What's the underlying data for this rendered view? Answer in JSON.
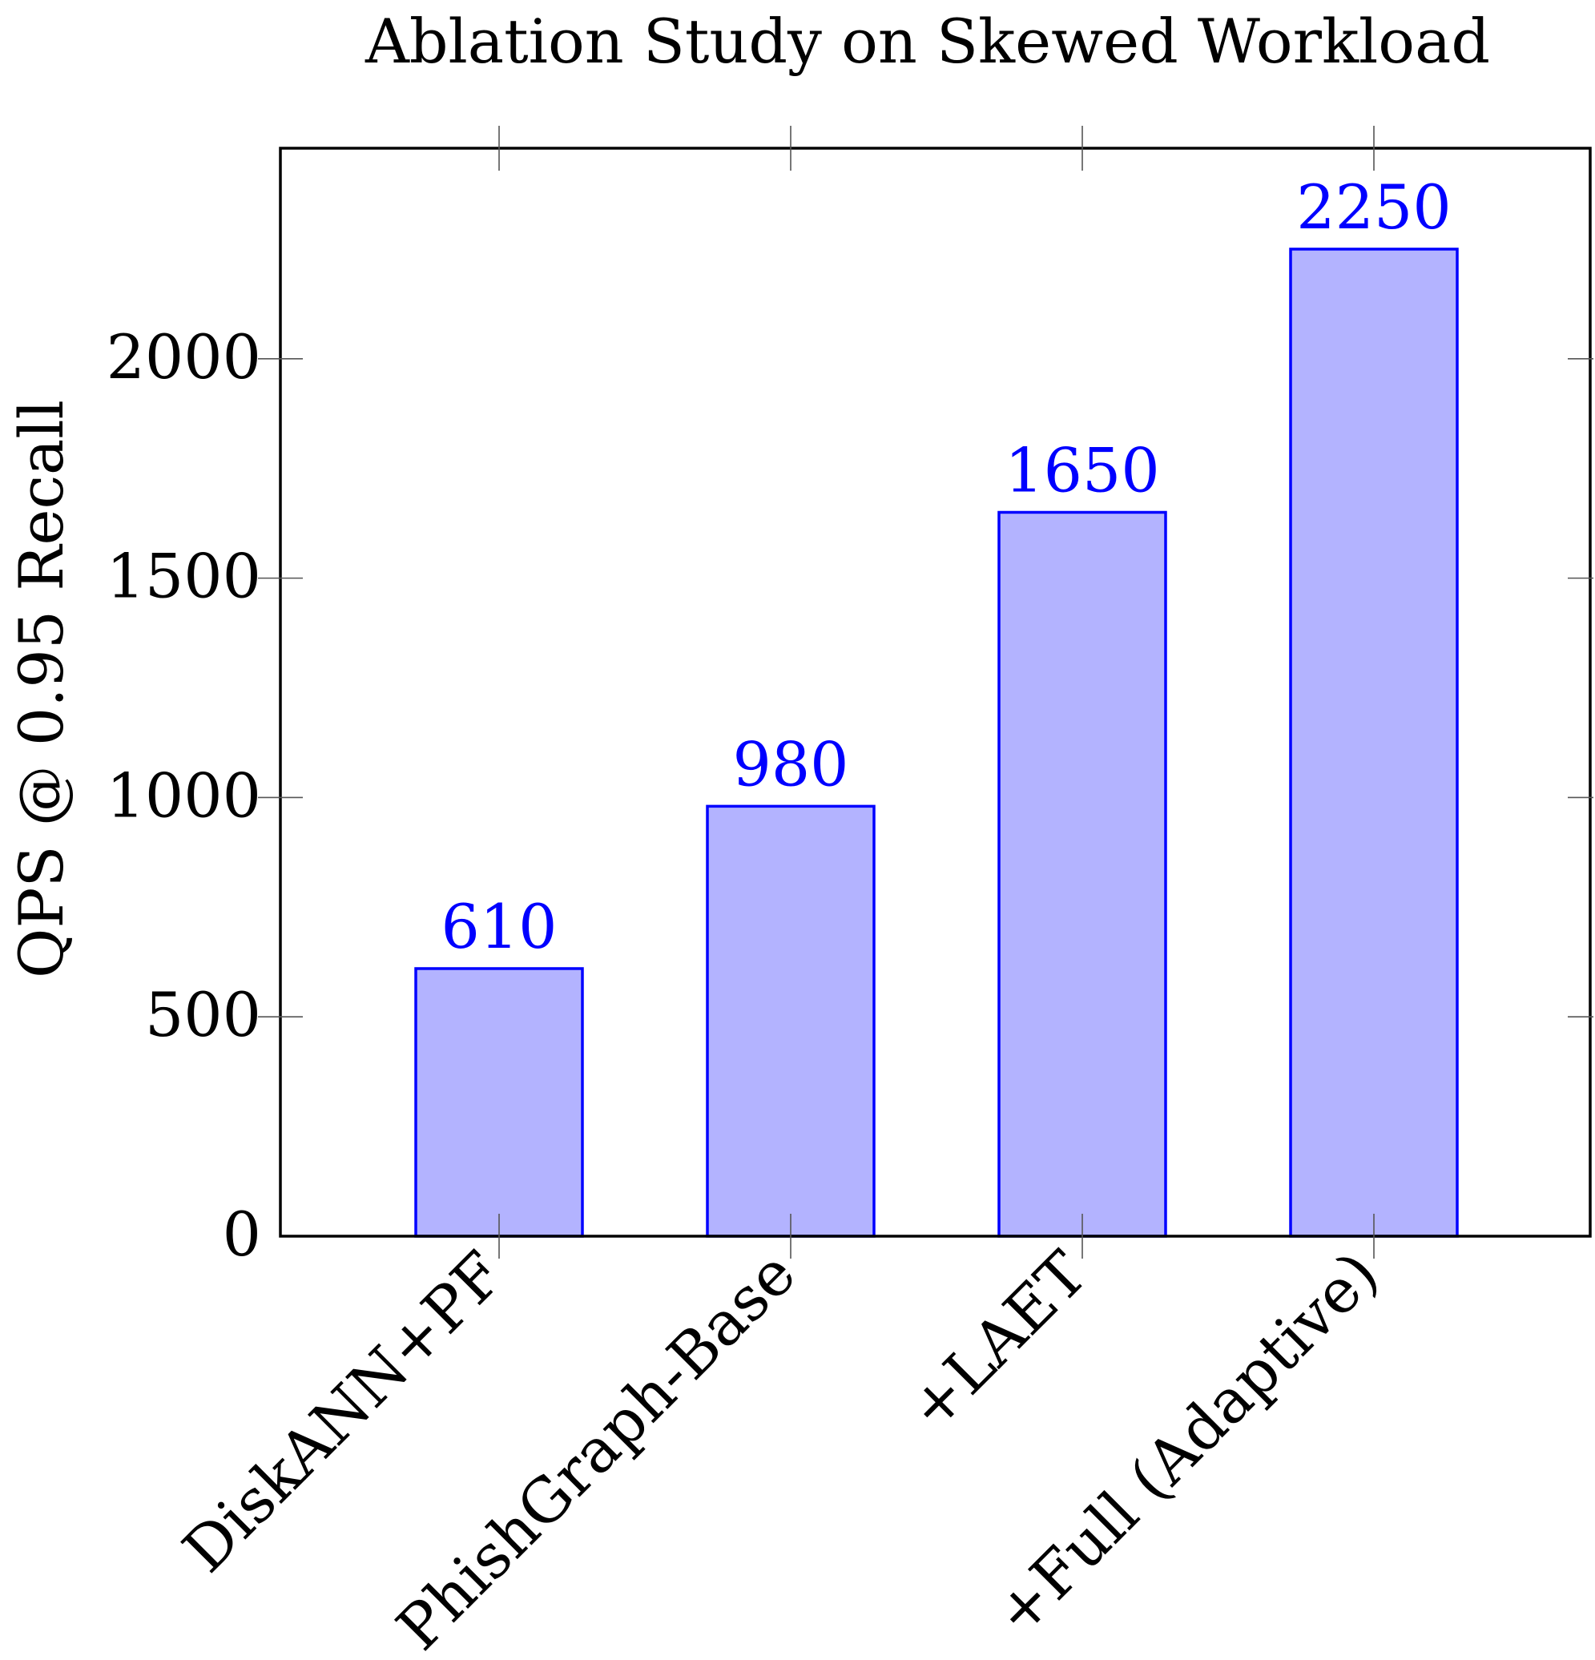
{
  "chart_data": {
    "type": "bar",
    "title": "Ablation Study on Skewed Workload",
    "xlabel": "",
    "ylabel": "QPS @ 0.95 Recall",
    "categories": [
      "DiskANN+PF",
      "PhishGraph-Base",
      "+LAET",
      "+Full (Adaptive)"
    ],
    "values": [
      610,
      980,
      1650,
      2250
    ],
    "data_labels": [
      "610",
      "980",
      "1650",
      "2250"
    ],
    "ylim": [
      0,
      2480
    ],
    "yticks": [
      0,
      500,
      1000,
      1500,
      2000
    ],
    "ytick_labels": [
      "0",
      "500",
      "1000",
      "1500",
      "2000"
    ],
    "grid": false,
    "legend": "none",
    "colors": {
      "bar_fill": "#b3b3ff",
      "bar_stroke": "#0000ff",
      "data_label": "#0000ff",
      "axis": "#000000",
      "text": "#000000"
    }
  }
}
